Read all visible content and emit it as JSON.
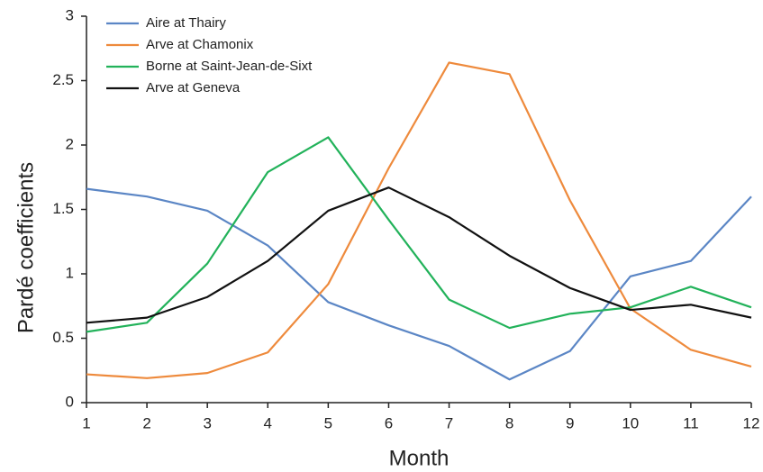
{
  "chart_data": {
    "type": "line",
    "xlabel": "Month",
    "ylabel": "Pardé coefficients",
    "x": [
      1,
      2,
      3,
      4,
      5,
      6,
      7,
      8,
      9,
      10,
      11,
      12
    ],
    "xlim": [
      1,
      12
    ],
    "xticks": [
      1,
      2,
      3,
      4,
      5,
      6,
      7,
      8,
      9,
      10,
      11,
      12
    ],
    "ylim": [
      0,
      3
    ],
    "yticks": [
      0,
      0.5,
      1,
      1.5,
      2,
      2.5,
      3
    ],
    "grid": false,
    "legend": "upper-left",
    "series": [
      {
        "name": "Aire at Thairy",
        "color": "#5b86c5",
        "values": [
          1.66,
          1.6,
          1.49,
          1.22,
          0.78,
          0.6,
          0.44,
          0.18,
          0.4,
          0.98,
          1.1,
          1.6
        ]
      },
      {
        "name": "Arve at Chamonix",
        "color": "#ee8a3c",
        "values": [
          0.22,
          0.19,
          0.23,
          0.39,
          0.92,
          1.82,
          2.64,
          2.55,
          1.57,
          0.73,
          0.41,
          0.28
        ]
      },
      {
        "name": "Borne at Saint-Jean-de-Sixt",
        "color": "#22b25a",
        "values": [
          0.55,
          0.62,
          1.08,
          1.79,
          2.06,
          1.42,
          0.8,
          0.58,
          0.69,
          0.74,
          0.9,
          0.74
        ]
      },
      {
        "name": "Arve at Geneva",
        "color": "#111111",
        "values": [
          0.62,
          0.66,
          0.82,
          1.1,
          1.49,
          1.67,
          1.44,
          1.14,
          0.89,
          0.72,
          0.76,
          0.66
        ]
      }
    ]
  }
}
